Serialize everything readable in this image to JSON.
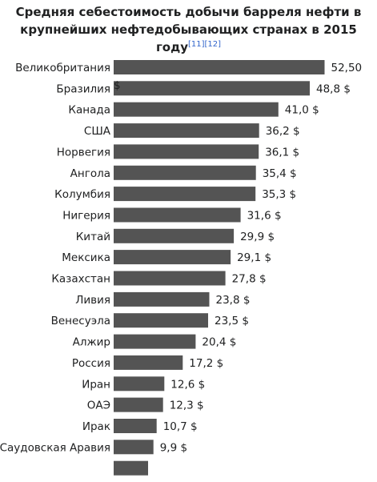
{
  "title": {
    "line1": "Средняя себестоимость добычи барреля нефти в",
    "line2": "крупнейших нефтедобывающих странах в 2015",
    "line3": "году",
    "refs": "[11][12]"
  },
  "colors": {
    "bar": "#545454",
    "text": "#202122",
    "ref": "#3366cc"
  },
  "chart_data": {
    "type": "bar",
    "orientation": "horizontal",
    "title": "Средняя себестоимость добычи барреля нефти в крупнейших нефтедобывающих странах в 2015 году",
    "categories": [
      "Великобритания",
      "Бразилия",
      "Канада",
      "США",
      "Норвегия",
      "Ангола",
      "Колумбия",
      "Нигерия",
      "Китай",
      "Мексика",
      "Казахстан",
      "Ливия",
      "Венесуэла",
      "Алжир",
      "Россия",
      "Иран",
      "ОАЭ",
      "Ирак",
      "Саудовская Аравия"
    ],
    "values": [
      52.5,
      48.8,
      41.0,
      36.2,
      36.1,
      35.4,
      35.3,
      31.6,
      29.9,
      29.1,
      27.8,
      23.8,
      23.5,
      20.4,
      17.2,
      12.6,
      12.3,
      10.7,
      9.9
    ],
    "value_labels": [
      "52,50 $",
      "48,8 $",
      "41,0 $",
      "36,2 $",
      "36,1 $",
      "35,4 $",
      "35,3 $",
      "31,6 $",
      "29,9 $",
      "29,1 $",
      "27,8 $",
      "23,8 $",
      "23,5 $",
      "20,4 $",
      "17,2 $",
      "12,6 $",
      "12,3 $",
      "10,7 $",
      "9,9 $"
    ],
    "xlabel": "",
    "ylabel": "",
    "grid": false,
    "legend": "none"
  }
}
